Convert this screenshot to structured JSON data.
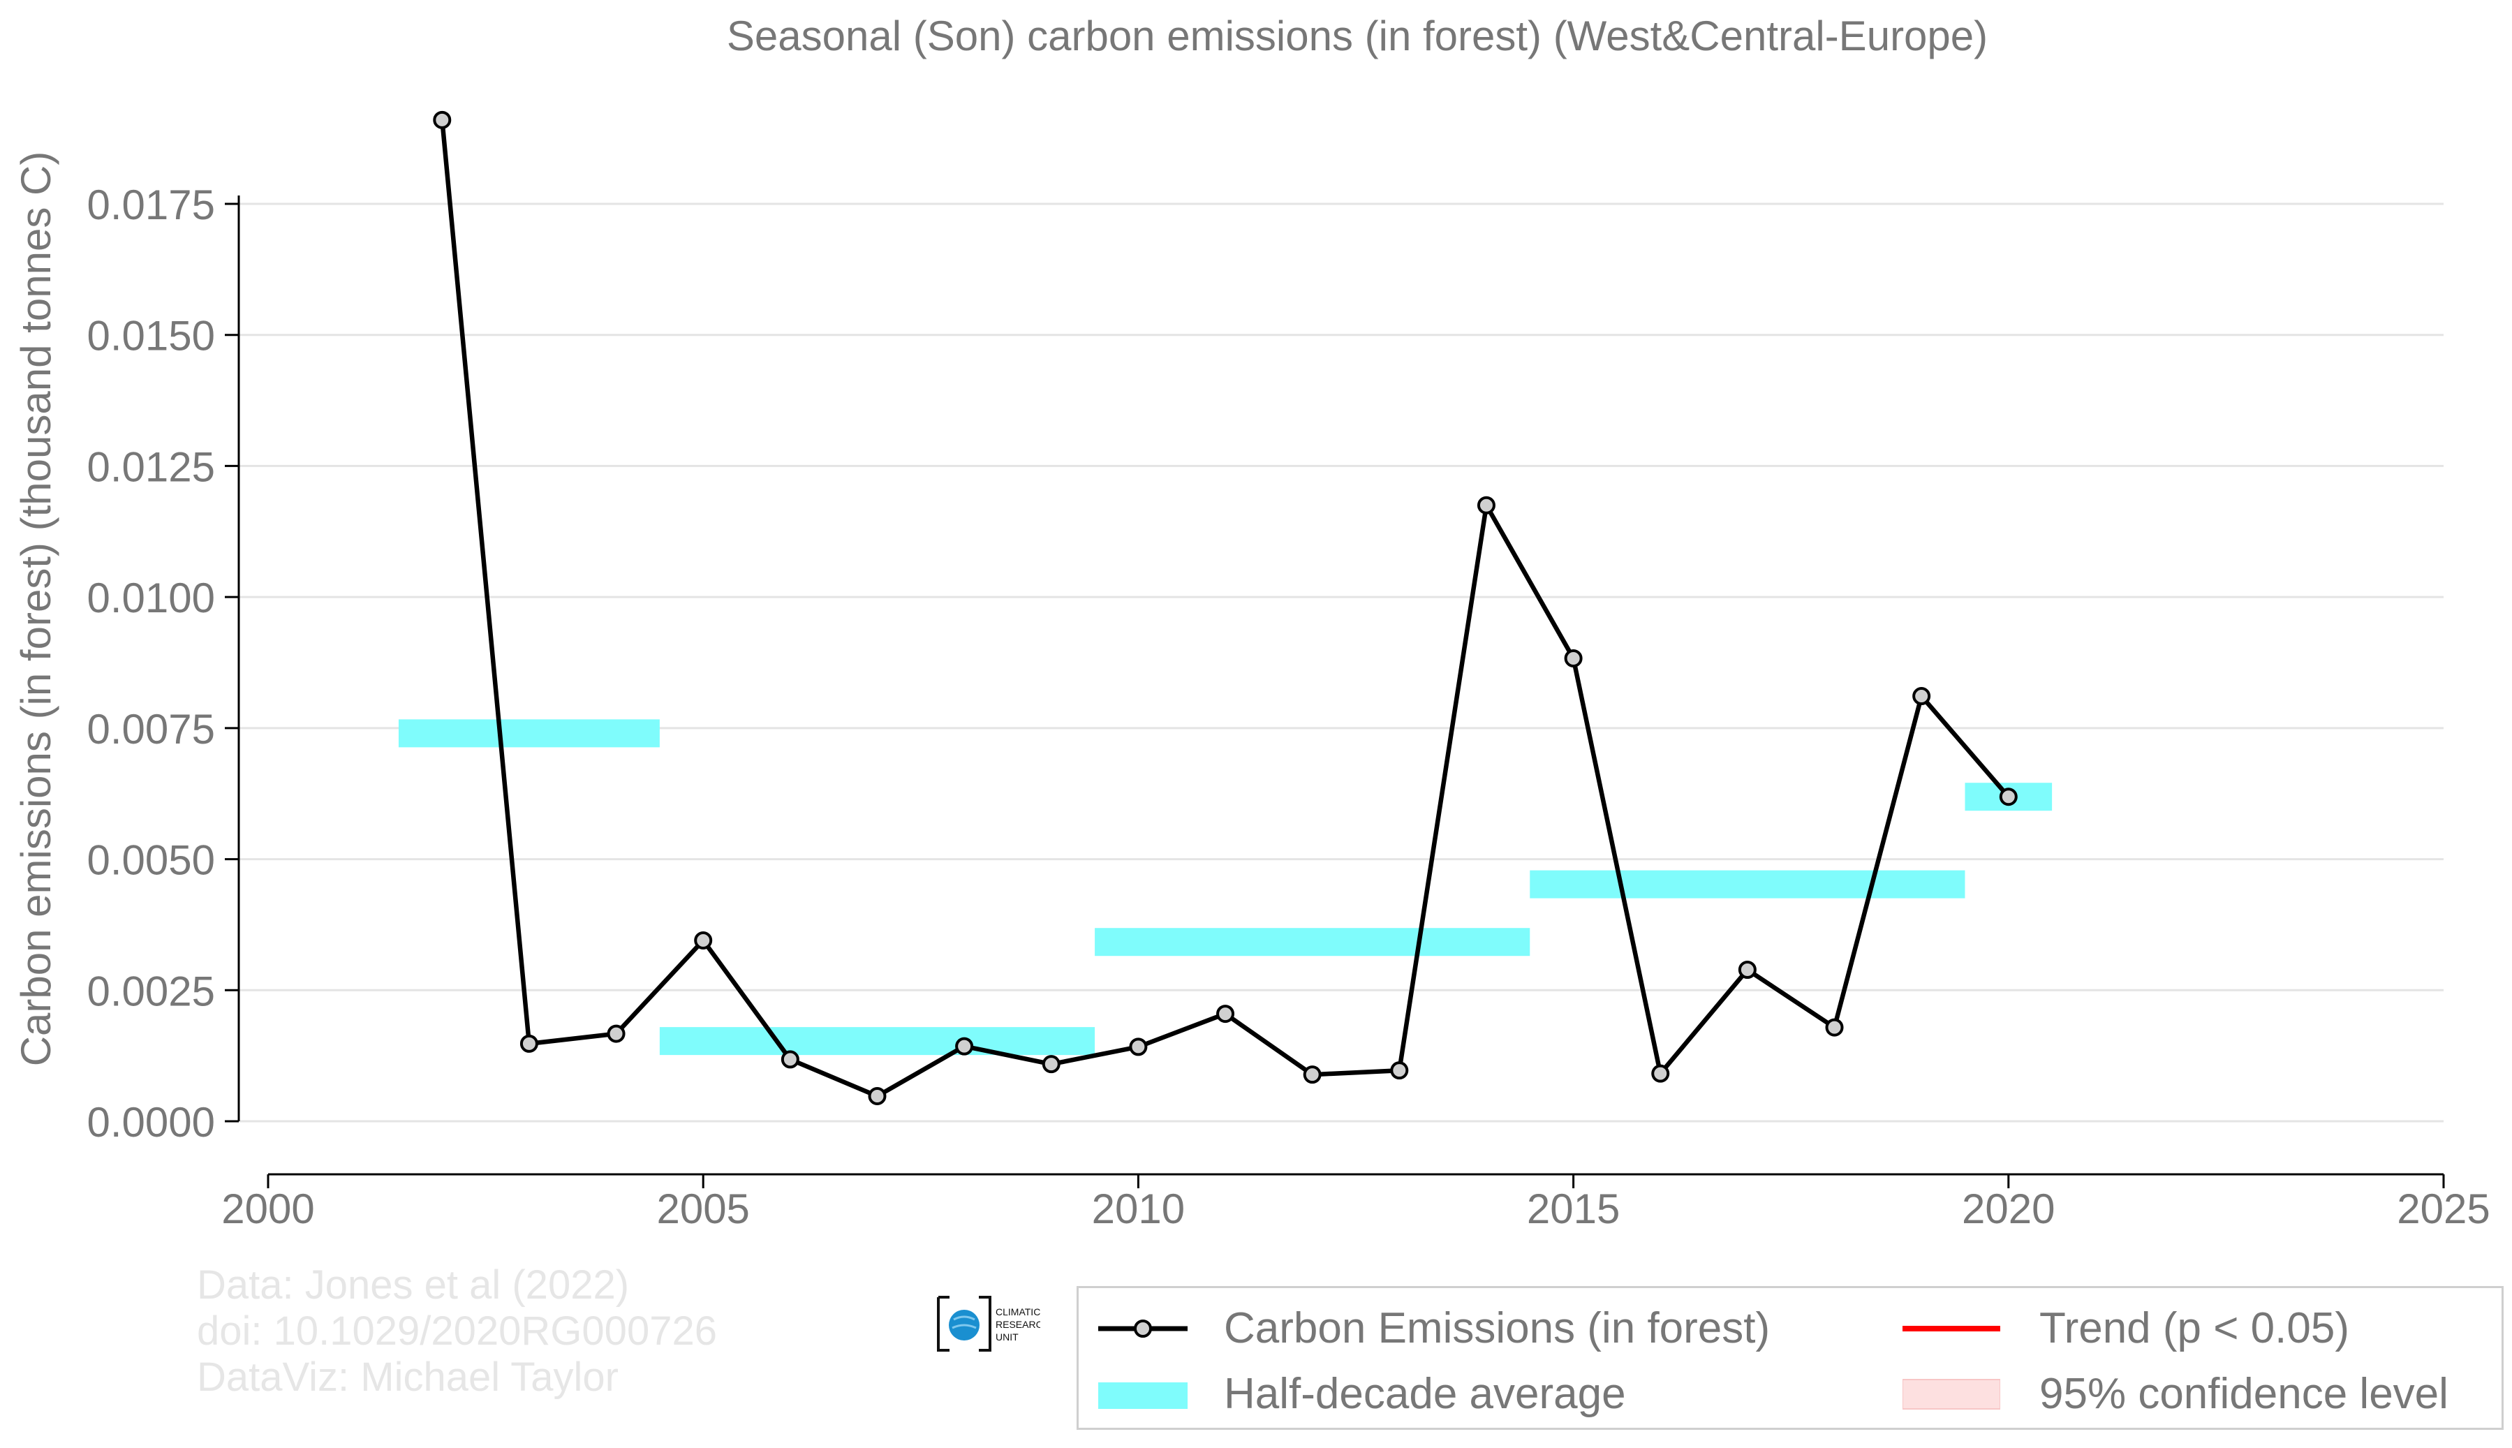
{
  "chart_data": {
    "type": "line",
    "title": "Seasonal (Son) carbon emissions (in forest) (West&Central-Europe)",
    "ylabel": "Carbon emissions (in forest) (thousand tonnes C)",
    "xlabel": "",
    "xlim": [
      2000,
      2025
    ],
    "ylim": [
      -0.001,
      0.0195
    ],
    "x_ticks": [
      2000,
      2005,
      2010,
      2015,
      2020,
      2025
    ],
    "y_ticks": [
      0.0,
      0.0025,
      0.005,
      0.0075,
      0.01,
      0.0125,
      0.015,
      0.0175
    ],
    "y_tick_labels": [
      "0.0000",
      "0.0025",
      "0.0050",
      "0.0075",
      "0.0100",
      "0.0125",
      "0.0150",
      "0.0175"
    ],
    "x_tick_labels": [
      "2000",
      "2005",
      "2010",
      "2015",
      "2020",
      "2025"
    ],
    "grid": "horizontal",
    "series": [
      {
        "name": "Carbon Emissions (in forest)",
        "color": "#000000",
        "marker_fill": "#d0d0d0",
        "x": [
          2002,
          2003,
          2004,
          2005,
          2006,
          2007,
          2008,
          2009,
          2010,
          2011,
          2012,
          2013,
          2014,
          2015,
          2016,
          2017,
          2018,
          2019,
          2020
        ],
        "y": [
          0.0191,
          0.00148,
          0.00167,
          0.00345,
          0.00118,
          0.00048,
          0.00143,
          0.00109,
          0.00142,
          0.00205,
          0.00089,
          0.00097,
          0.01175,
          0.00883,
          0.00091,
          0.00289,
          0.00179,
          0.00811,
          0.00619
        ]
      }
    ],
    "half_decade_averages": {
      "name": "Half-decade average",
      "color": "#7ffcfc",
      "segments": [
        {
          "x0": 2001.5,
          "x1": 2004.5,
          "y": 0.0074
        },
        {
          "x0": 2004.5,
          "x1": 2009.5,
          "y": 0.00153
        },
        {
          "x0": 2009.5,
          "x1": 2014.5,
          "y": 0.00342
        },
        {
          "x0": 2014.5,
          "x1": 2019.5,
          "y": 0.00452
        },
        {
          "x0": 2019.5,
          "x1": 2020.5,
          "y": 0.00619
        }
      ]
    },
    "legend": {
      "placement": "bottom-right",
      "entries": [
        {
          "label": "Carbon Emissions (in forest)",
          "kind": "line-marker",
          "color": "#000000"
        },
        {
          "label": "Trend (p < 0.05)",
          "kind": "line",
          "color": "#ff0000"
        },
        {
          "label": "Half-decade average",
          "kind": "band",
          "color": "#7ffcfc"
        },
        {
          "label": "95% confidence level",
          "kind": "patch",
          "color": "#fde0e0"
        }
      ]
    }
  },
  "credits": {
    "line1": "Data: Jones et al (2022)",
    "line2": "doi: 10.1029/2020RG000726",
    "line3": "DataViz: Michael Taylor"
  },
  "logo": {
    "line1": "CLIMATIC",
    "line2": "RESEARCH",
    "line3": "UNIT",
    "color": "#1a8fd0"
  }
}
